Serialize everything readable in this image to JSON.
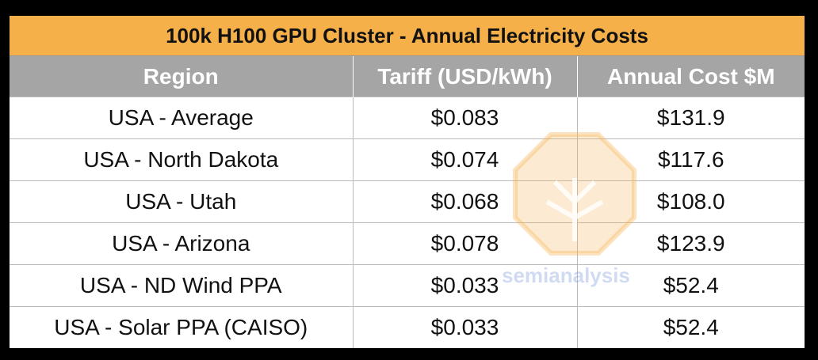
{
  "title": "100k H100 GPU Cluster - Annual Electricity Costs",
  "table": {
    "header": [
      "Region",
      "Tariff (USD/kWh)",
      "Annual Cost $M"
    ],
    "rows": [
      [
        "USA - Average",
        "$0.083",
        "$131.9"
      ],
      [
        "USA - North Dakota",
        "$0.074",
        "$117.6"
      ],
      [
        "USA - Utah",
        "$0.068",
        "$108.0"
      ],
      [
        "USA - Arizona",
        "$0.078",
        "$123.9"
      ],
      [
        "USA - ND Wind PPA",
        "$0.033",
        "$52.4"
      ],
      [
        "USA - Solar PPA (CAISO)",
        "$0.033",
        "$52.4"
      ]
    ]
  },
  "watermark": "semianalysis"
}
